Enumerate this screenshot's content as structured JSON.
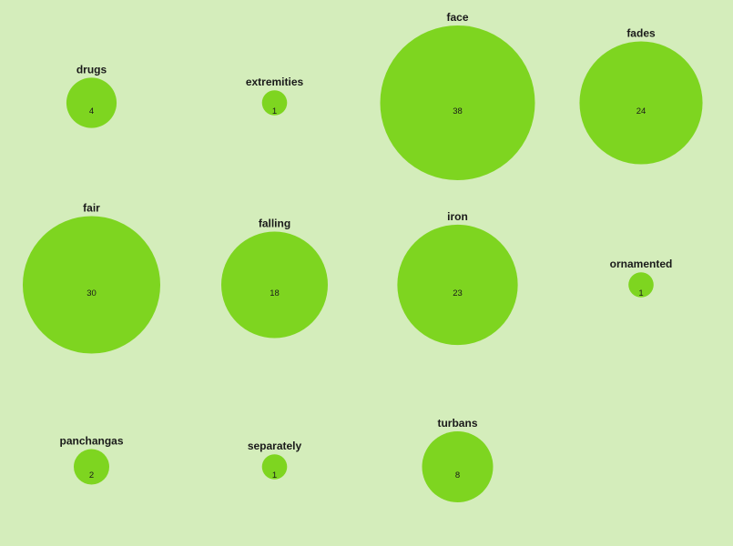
{
  "chart_data": {
    "type": "bubble",
    "title": "",
    "colors": {
      "background": "#d4edbb",
      "bubble": "#7ed520",
      "text": "#1a1a1a"
    },
    "items": [
      {
        "label": "drugs",
        "value": 4
      },
      {
        "label": "extremities",
        "value": 1
      },
      {
        "label": "face",
        "value": 38
      },
      {
        "label": "fades",
        "value": 24
      },
      {
        "label": "fair",
        "value": 30
      },
      {
        "label": "falling",
        "value": 18
      },
      {
        "label": "iron",
        "value": 23
      },
      {
        "label": "ornamented",
        "value": 1
      },
      {
        "label": "panchangas",
        "value": 2
      },
      {
        "label": "separately",
        "value": 1
      },
      {
        "label": "turbans",
        "value": 8
      }
    ]
  }
}
